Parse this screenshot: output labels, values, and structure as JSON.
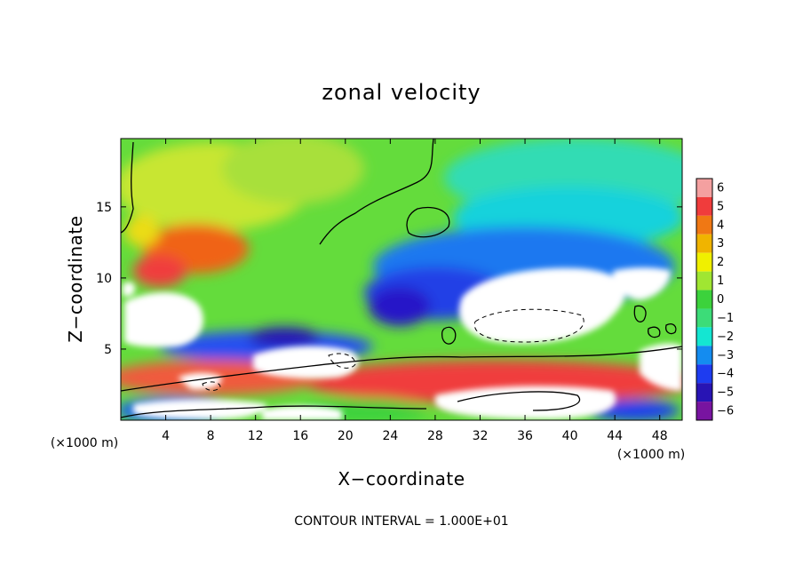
{
  "chart_data": {
    "type": "heatmap",
    "title": "zonal velocity",
    "xlabel": "X−coordinate",
    "ylabel": "Z−coordinate",
    "x_unit_label_left": "(×1000 m)",
    "x_unit_label_right": "(×1000 m)",
    "x_ticks": [
      "4",
      "8",
      "12",
      "16",
      "20",
      "24",
      "28",
      "32",
      "36",
      "40",
      "44",
      "48"
    ],
    "x_tick_values": [
      4,
      8,
      12,
      16,
      20,
      24,
      28,
      32,
      36,
      40,
      44,
      48
    ],
    "y_ticks": [
      "5",
      "10",
      "15"
    ],
    "y_tick_values": [
      5,
      10,
      15
    ],
    "xlim": [
      0,
      50
    ],
    "ylim": [
      0,
      19.8
    ],
    "colorbar": {
      "labels": [
        "6",
        "5",
        "4",
        "3",
        "2",
        "1",
        "0",
        "−1",
        "−2",
        "−3",
        "−4",
        "−5",
        "−6"
      ],
      "colors": [
        "#f4a0a0",
        "#f03c3c",
        "#f07814",
        "#f0b400",
        "#f0f000",
        "#a0e632",
        "#3cd23c",
        "#3cdc78",
        "#14e6d2",
        "#148cf0",
        "#1e3cf0",
        "#2814b4",
        "#7814a0"
      ]
    },
    "contour_interval": "CONTOUR INTERVAL = 1.000E+01"
  }
}
